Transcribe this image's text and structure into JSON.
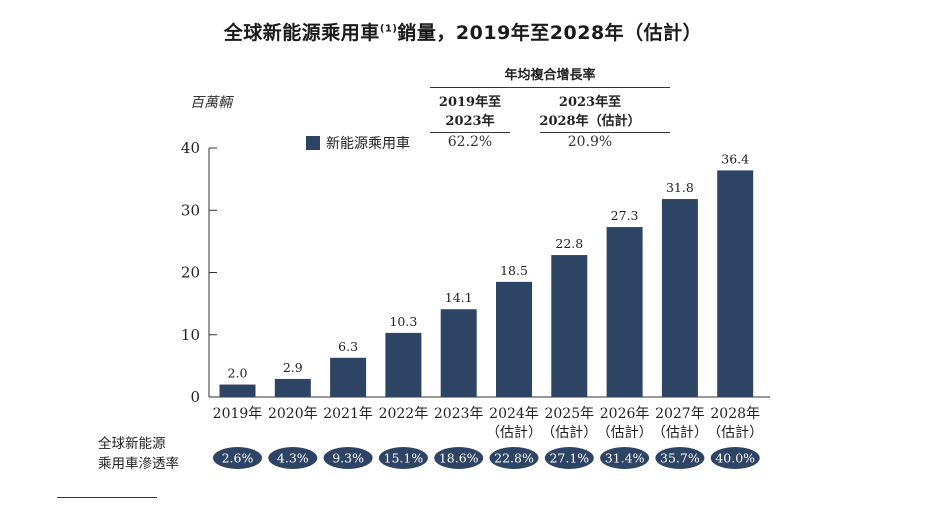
{
  "title_main": "全球新能源乘用車",
  "title_sup": "(1)",
  "title_rest": "銷量，2019年至2028年（估計）",
  "unit_label": "百萬輛",
  "cagr": {
    "header": "年均複合增長率",
    "periods": [
      {
        "line1": "2019年至",
        "line2": "2023年",
        "value": "62.2%"
      },
      {
        "line1": "2023年至",
        "line2": "2028年（估計）",
        "value": "20.9%"
      }
    ]
  },
  "legend": {
    "label": "新能源乘用車",
    "color": "#2e4464"
  },
  "penetration": {
    "label_line1": "全球新能源",
    "label_line2": "乘用車滲透率",
    "values": [
      "2.6%",
      "4.3%",
      "9.3%",
      "15.1%",
      "18.6%",
      "22.8%",
      "27.1%",
      "31.4%",
      "35.7%",
      "40.0%"
    ],
    "badge_color": "#2e4464"
  },
  "chart_data": {
    "type": "bar",
    "title": "全球新能源乘用車銷量，2019年至2028年（估計）",
    "ylabel": "百萬輛",
    "ylim": [
      0,
      40
    ],
    "yticks": [
      0,
      10,
      20,
      30,
      40
    ],
    "categories": [
      "2019年",
      "2020年",
      "2021年",
      "2022年",
      "2023年",
      "2024年",
      "2025年",
      "2026年",
      "2027年",
      "2028年"
    ],
    "category_sub": [
      "",
      "",
      "",
      "",
      "",
      "（估計）",
      "（估計）",
      "（估計）",
      "（估計）",
      "（估計）"
    ],
    "series": [
      {
        "name": "新能源乘用車",
        "values": [
          2.0,
          2.9,
          6.3,
          10.3,
          14.1,
          18.5,
          22.8,
          27.3,
          31.8,
          36.4
        ]
      }
    ],
    "data_labels": [
      "2.0",
      "2.9",
      "6.3",
      "10.3",
      "14.1",
      "18.5",
      "22.8",
      "27.3",
      "31.8",
      "36.4"
    ],
    "bar_color": "#2e4464",
    "grid": false
  }
}
